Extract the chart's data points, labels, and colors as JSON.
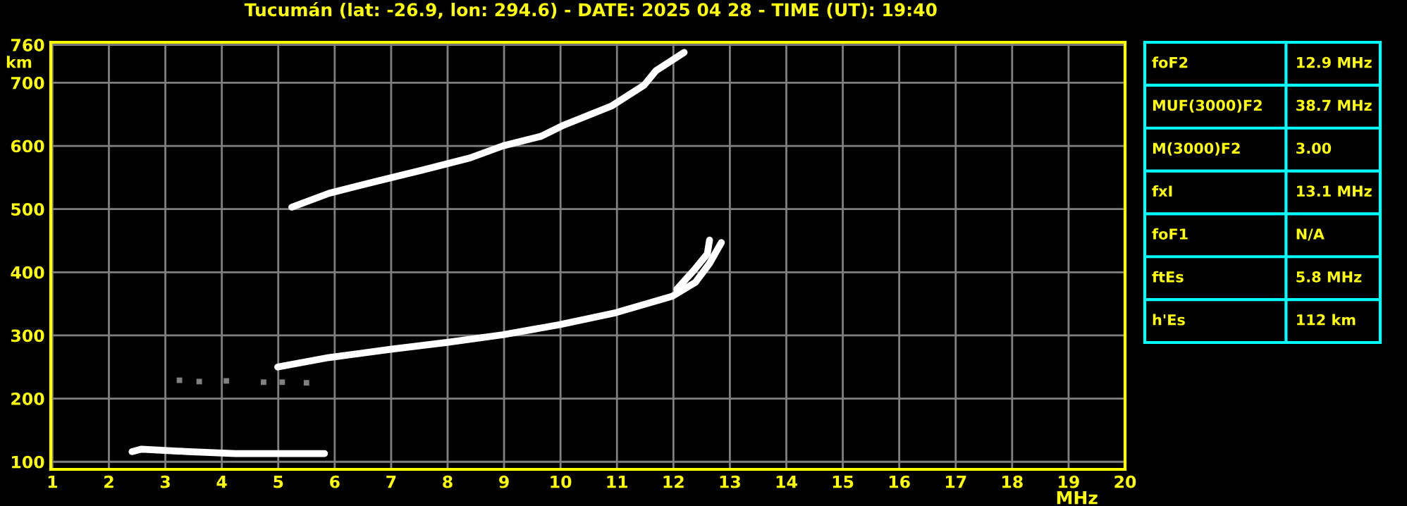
{
  "chart_data": [
    {
      "type": "line",
      "title": "Tucumán (lat: -26.9, lon: 294.6) - DATE: 2025 04 28 - TIME (UT): 19:40",
      "xlabel": "MHz",
      "ylabel": "km",
      "xlim": [
        0.97,
        20
      ],
      "ylim": [
        88,
        764
      ],
      "xticks": [
        1,
        2,
        3,
        4,
        5,
        6,
        7,
        8,
        9,
        10,
        11,
        12,
        13,
        14,
        15,
        16,
        17,
        18,
        19,
        20
      ],
      "yticks": [
        100,
        200,
        300,
        400,
        500,
        600,
        700,
        760
      ],
      "grid": true,
      "marker": "none",
      "line_style": "solid",
      "series": [
        {
          "color": "#ffffff",
          "x": [
            4.99,
            5.9,
            6.99,
            7.99,
            8.98,
            9.98,
            10.98,
            11.98,
            12.39,
            12.64,
            12.85
          ],
          "values": [
            250,
            265,
            278,
            289,
            301,
            317,
            336,
            362,
            384,
            414,
            447
          ]
        },
        {
          "color": "#ffffff",
          "x": [
            12.06,
            12.39,
            12.6,
            12.64
          ],
          "values": [
            373,
            406,
            429,
            451
          ]
        },
        {
          "color": "#ffffff",
          "x": [
            5.24,
            5.9,
            6.74,
            7.57,
            8.4,
            8.98,
            9.65,
            10.06,
            10.9,
            11.48,
            11.69,
            12.19
          ],
          "values": [
            503,
            525,
            544,
            562,
            581,
            600,
            615,
            633,
            663,
            696,
            719,
            748
          ]
        },
        {
          "color": "#ffffff",
          "x": [
            2.41,
            2.58,
            3.41,
            4.24,
            5.07,
            5.82
          ],
          "values": [
            116,
            120,
            116,
            113,
            113,
            113
          ]
        },
        {
          "type": "scatter",
          "marker": "square",
          "color": "#808080",
          "x": [
            3.25,
            3.6,
            4.08,
            4.74,
            5.07,
            5.5
          ],
          "values": [
            229,
            227,
            228,
            226,
            226,
            225
          ]
        }
      ]
    },
    {
      "type": "other",
      "annotations": [
        "foF2",
        "12.9 MHz",
        "MUF(3000)F2",
        "38.7 MHz",
        "M(3000)F2",
        "3.00",
        "fxI",
        "13.1 MHz",
        "foF1",
        "N/A",
        "ftEs",
        "5.8 MHz",
        "h'Es",
        "112 km"
      ]
    }
  ]
}
